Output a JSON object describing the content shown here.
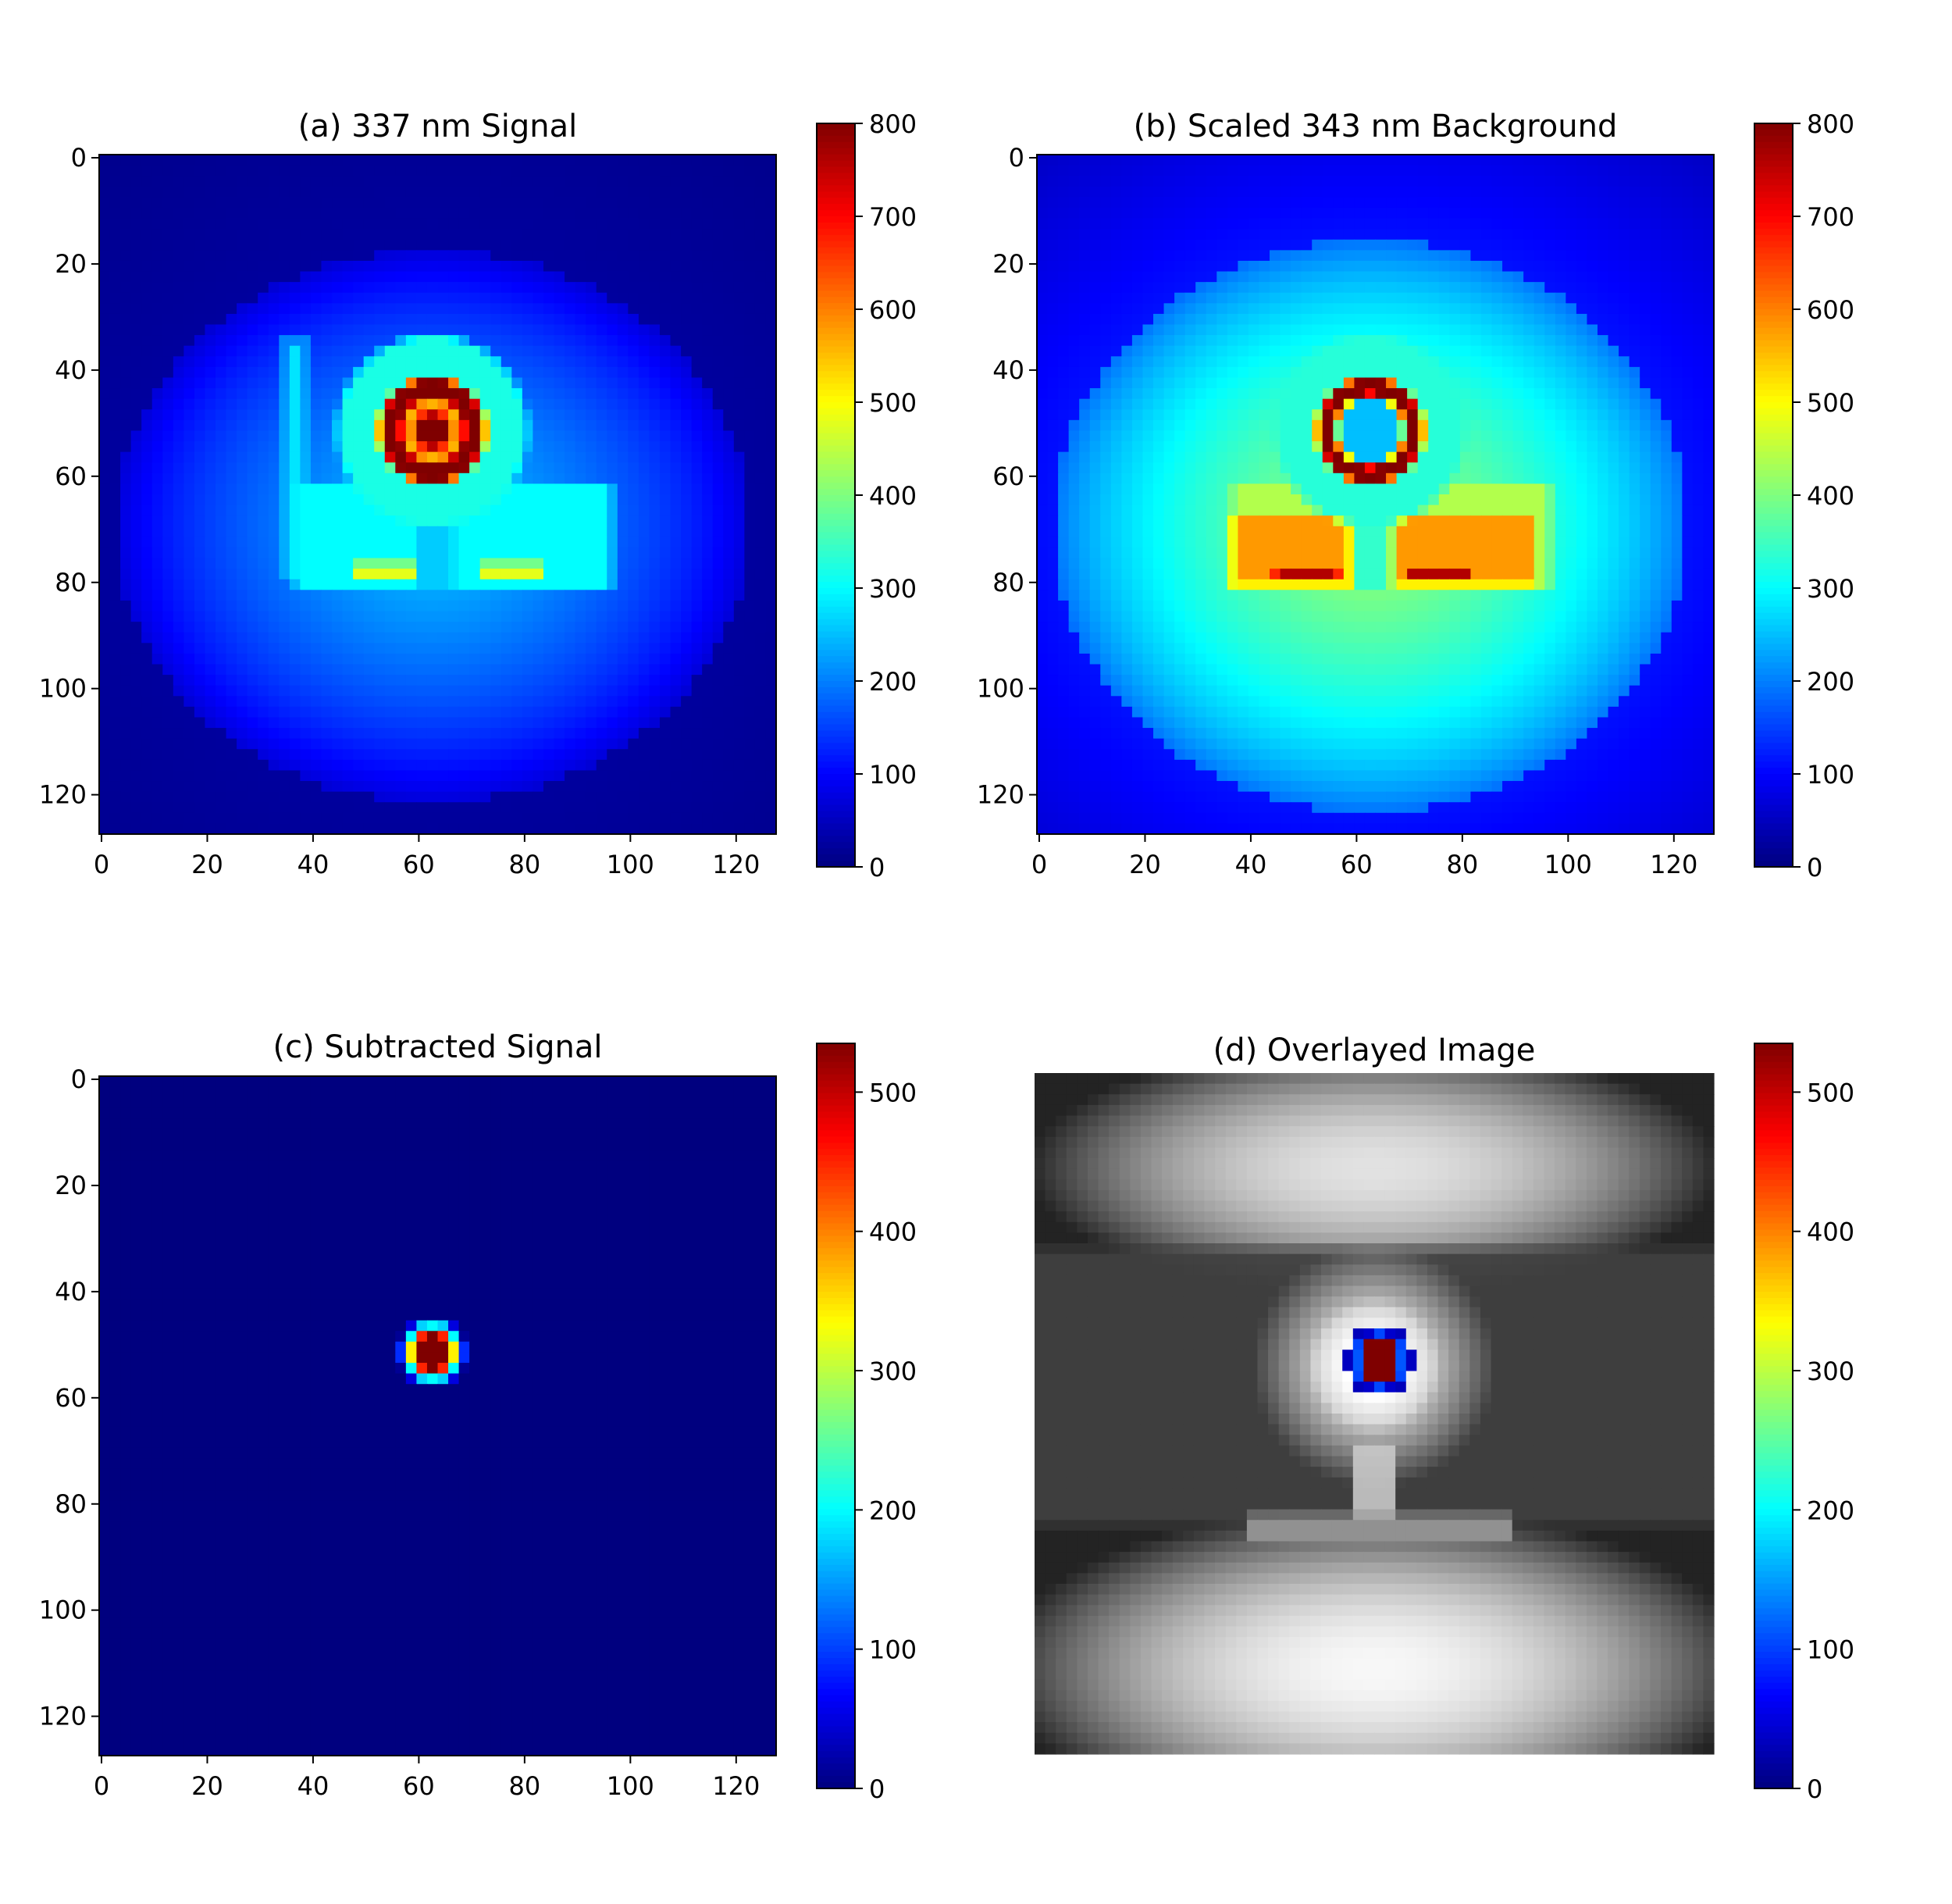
{
  "colormaps": {
    "jet": [
      "#00007f",
      "#0000ff",
      "#007fff",
      "#00ffff",
      "#7fff7f",
      "#ffff00",
      "#ff7f00",
      "#ff0000",
      "#7f0000"
    ],
    "gray": [
      "#0a0a0a",
      "#ffffff"
    ]
  },
  "chart_data": [
    {
      "type": "heatmap",
      "title": "(a) 337 nm Signal",
      "xlim": [
        0,
        128
      ],
      "ylim": [
        128,
        0
      ],
      "xticks": [
        0,
        20,
        40,
        60,
        80,
        100,
        120
      ],
      "yticks": [
        0,
        20,
        40,
        60,
        80,
        100,
        120
      ],
      "colorbar": {
        "range": [
          0,
          800
        ],
        "ticks": [
          0,
          100,
          200,
          300,
          400,
          500,
          600,
          700,
          800
        ]
      },
      "colormap": "jet",
      "show_axes": true,
      "scene": {
        "background": {
          "cx": 63,
          "cy": 70,
          "rx": 60,
          "ry": 52,
          "value": 250,
          "edge_value": 30
        },
        "features": [
          {
            "kind": "rect",
            "x": 35,
            "y": 35,
            "w": 4,
            "h": 45,
            "value": 280
          },
          {
            "kind": "rect",
            "x": 37,
            "y": 62,
            "w": 60,
            "h": 20,
            "value": 300
          },
          {
            "kind": "rect",
            "x": 48,
            "y": 77,
            "w": 12,
            "h": 3,
            "value": 480
          },
          {
            "kind": "rect",
            "x": 72,
            "y": 77,
            "w": 12,
            "h": 3,
            "value": 480
          },
          {
            "kind": "rect",
            "x": 60,
            "y": 60,
            "w": 7,
            "h": 22,
            "value": 260
          },
          {
            "kind": "circle",
            "cx": 63,
            "cy": 52,
            "r": 18,
            "value": 320
          },
          {
            "kind": "circle",
            "cx": 63,
            "cy": 52,
            "r": 10,
            "value": 800
          },
          {
            "kind": "circle",
            "cx": 63,
            "cy": 52,
            "r": 6,
            "value": 560
          },
          {
            "kind": "circle",
            "cx": 63,
            "cy": 52,
            "r": 3.5,
            "value": 800
          }
        ]
      }
    },
    {
      "type": "heatmap",
      "title": "(b) Scaled 343 nm Background",
      "xlim": [
        0,
        128
      ],
      "ylim": [
        128,
        0
      ],
      "xticks": [
        0,
        20,
        40,
        60,
        80,
        100,
        120
      ],
      "yticks": [
        0,
        20,
        40,
        60,
        80,
        100,
        120
      ],
      "colorbar": {
        "range": [
          0,
          800
        ],
        "ticks": [
          0,
          100,
          200,
          300,
          400,
          500,
          600,
          700,
          800
        ]
      },
      "colormap": "jet",
      "show_axes": true,
      "scene": {
        "background": {
          "cx": 63,
          "cy": 70,
          "rx": 60,
          "ry": 54,
          "value": 420,
          "edge_value": 140
        },
        "features": [
          {
            "kind": "rect",
            "x": 37,
            "y": 62,
            "w": 60,
            "h": 20,
            "value": 440
          },
          {
            "kind": "rect",
            "x": 37,
            "y": 68,
            "w": 22,
            "h": 13,
            "value": 580
          },
          {
            "kind": "rect",
            "x": 67,
            "y": 68,
            "w": 27,
            "h": 13,
            "value": 580
          },
          {
            "kind": "rect",
            "x": 45,
            "y": 78,
            "w": 12,
            "h": 2,
            "value": 760
          },
          {
            "kind": "rect",
            "x": 70,
            "y": 78,
            "w": 12,
            "h": 2,
            "value": 760
          },
          {
            "kind": "rect",
            "x": 60,
            "y": 60,
            "w": 7,
            "h": 22,
            "value": 340
          },
          {
            "kind": "circle",
            "cx": 63,
            "cy": 52,
            "r": 18,
            "value": 330
          },
          {
            "kind": "circle",
            "cx": 63,
            "cy": 52,
            "r": 10,
            "value": 800
          },
          {
            "kind": "circle",
            "cx": 63,
            "cy": 52,
            "r": 6.5,
            "value": 250
          }
        ]
      }
    },
    {
      "type": "heatmap",
      "title": "(c) Subtracted Signal",
      "xlim": [
        0,
        128
      ],
      "ylim": [
        128,
        0
      ],
      "xticks": [
        0,
        20,
        40,
        60,
        80,
        100,
        120
      ],
      "yticks": [
        0,
        20,
        40,
        60,
        80,
        100,
        120
      ],
      "colorbar": {
        "range": [
          0,
          535
        ],
        "ticks": [
          0,
          100,
          200,
          300,
          400,
          500
        ]
      },
      "colormap": "jet",
      "show_axes": true,
      "scene": {
        "background": {
          "value": 0
        },
        "features": [
          {
            "kind": "circle",
            "cx": 63,
            "cy": 52,
            "r": 6,
            "value": 200
          },
          {
            "kind": "circle",
            "cx": 63,
            "cy": 52,
            "r": 4,
            "value": 535
          }
        ]
      }
    },
    {
      "type": "heatmap",
      "title": "(d) Overlayed Image",
      "xlim": [
        0,
        128
      ],
      "ylim": [
        128,
        0
      ],
      "colorbar": {
        "range": [
          0,
          535
        ],
        "ticks": [
          0,
          100,
          200,
          300,
          400,
          500
        ]
      },
      "colormap": "jet",
      "show_axes": false,
      "scene": {
        "gray_base": {
          "blobs": [
            {
              "cx": 64,
              "cy": 18,
              "rx": 60,
              "ry": 22,
              "value": 0.88
            },
            {
              "cx": 64,
              "cy": 112,
              "rx": 65,
              "ry": 28,
              "value": 0.97
            },
            {
              "cx": 64,
              "cy": 55,
              "r": 20,
              "value": 0.78
            },
            {
              "cx": 64,
              "cy": 55,
              "r": 11,
              "value": 1.0
            }
          ],
          "bands": [
            {
              "y": 33,
              "h": 52,
              "value": 0.22
            }
          ],
          "stem": {
            "x": 60,
            "y": 70,
            "w": 8,
            "h": 16,
            "value": 0.72
          },
          "base": {
            "x": 40,
            "y": 83,
            "w": 50,
            "h": 5,
            "value": 0.55
          }
        },
        "overlay": [
          {
            "kind": "circle",
            "cx": 65,
            "cy": 54,
            "r": 6.5,
            "value": 150
          },
          {
            "kind": "circle",
            "cx": 65,
            "cy": 54,
            "r": 4,
            "value": 535
          }
        ]
      }
    }
  ]
}
